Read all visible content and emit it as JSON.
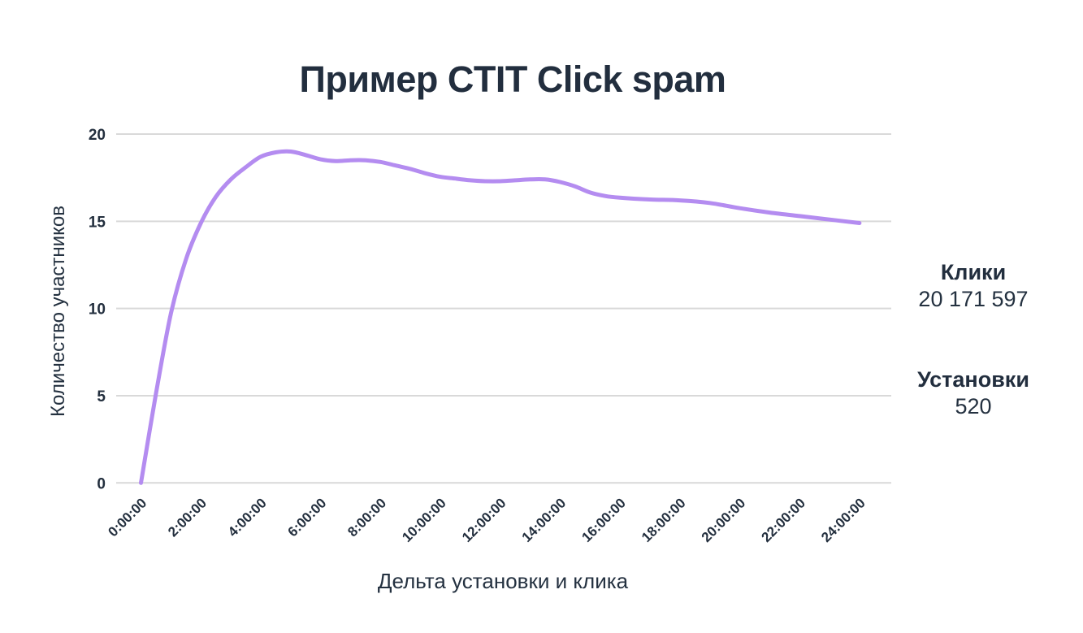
{
  "page": {
    "background": "#ffffff",
    "text_color": "#243140"
  },
  "chart_data": {
    "type": "line",
    "title": "Пример CTIT Click spam",
    "xlabel": "Дельта установки и клика",
    "ylabel": "Количество участников",
    "x_unit": "hours",
    "x": [
      0,
      0.5,
      1,
      1.5,
      2,
      2.5,
      3,
      3.5,
      4,
      4.5,
      5,
      5.5,
      6,
      6.5,
      7,
      7.5,
      8,
      8.5,
      9,
      9.5,
      10,
      10.5,
      11,
      11.5,
      12,
      12.5,
      13,
      13.5,
      14,
      14.5,
      15,
      15.5,
      16,
      17,
      18,
      19,
      20,
      21,
      22,
      23,
      24
    ],
    "y": [
      0,
      5.1,
      9.7,
      12.8,
      14.9,
      16.4,
      17.4,
      18.1,
      18.7,
      18.95,
      19.0,
      18.8,
      18.55,
      18.45,
      18.5,
      18.5,
      18.4,
      18.2,
      18.0,
      17.75,
      17.55,
      17.45,
      17.35,
      17.3,
      17.3,
      17.35,
      17.4,
      17.4,
      17.25,
      17.0,
      16.65,
      16.45,
      16.35,
      16.25,
      16.2,
      16.05,
      15.75,
      15.5,
      15.3,
      15.1,
      14.9
    ],
    "x_tick_labels": [
      "0:00:00",
      "2:00:00",
      "4:00:00",
      "6:00:00",
      "8:00:00",
      "10:00:00",
      "12:00:00",
      "14:00:00",
      "16:00:00",
      "18:00:00",
      "20:00:00",
      "22:00:00",
      "24:00:00"
    ],
    "x_tick_hours": [
      0,
      2,
      4,
      6,
      8,
      10,
      12,
      14,
      16,
      18,
      20,
      22,
      24
    ],
    "y_ticks": [
      0,
      5,
      10,
      15,
      20
    ],
    "ylim": [
      0,
      20
    ],
    "xlim_hours": [
      0,
      24
    ],
    "grid": true,
    "legend_position": "none",
    "line_color": "#b48cf0",
    "grid_color": "#d9d9d9",
    "tick_text_color": "#232f3e"
  },
  "stats": [
    {
      "label": "Клики",
      "value": "20 171 597"
    },
    {
      "label": "Установки",
      "value": "520"
    }
  ]
}
